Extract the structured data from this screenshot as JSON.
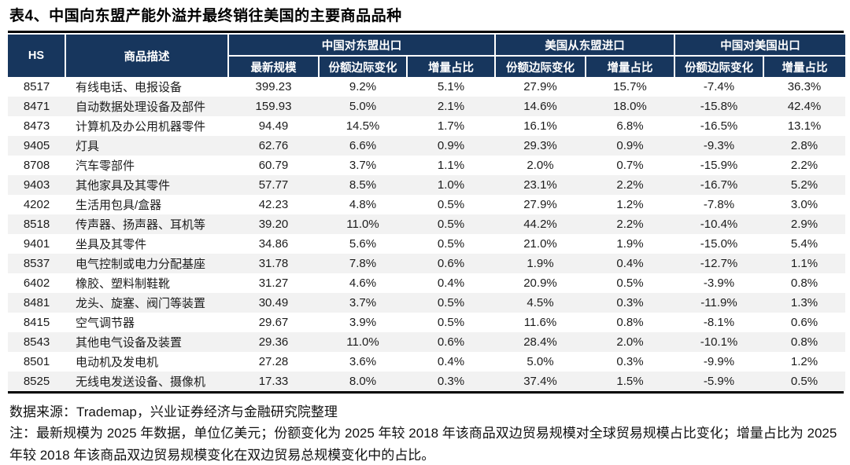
{
  "title": "表4、中国向东盟产能外溢并最终销往美国的主要商品品种",
  "colors": {
    "header_bg": "#17365D",
    "row_stripe": "#F2F2F2",
    "rule": "#000000"
  },
  "table": {
    "headers": {
      "hs": "HS",
      "desc": "商品描述"
    },
    "groups": [
      {
        "label": "中国对东盟出口",
        "cols": [
          "最新规模",
          "份额边际变化",
          "增量占比"
        ]
      },
      {
        "label": "美国从东盟进口",
        "cols": [
          "份额边际变化",
          "增量占比"
        ]
      },
      {
        "label": "中国对美国出口",
        "cols": [
          "份额边际变化",
          "增量占比"
        ]
      }
    ],
    "rows": [
      [
        "8517",
        "有线电话、电报设备",
        "399.23",
        "9.2%",
        "5.1%",
        "27.9%",
        "15.7%",
        "-7.4%",
        "36.3%"
      ],
      [
        "8471",
        "自动数据处理设备及部件",
        "159.93",
        "5.0%",
        "2.1%",
        "14.6%",
        "18.0%",
        "-15.8%",
        "42.4%"
      ],
      [
        "8473",
        "计算机及办公用机器零件",
        "94.49",
        "14.5%",
        "1.7%",
        "16.1%",
        "6.8%",
        "-16.5%",
        "13.1%"
      ],
      [
        "9405",
        "灯具",
        "62.76",
        "6.6%",
        "0.9%",
        "29.3%",
        "0.9%",
        "-9.3%",
        "2.8%"
      ],
      [
        "8708",
        "汽车零部件",
        "60.79",
        "3.7%",
        "1.1%",
        "2.0%",
        "0.7%",
        "-15.9%",
        "2.2%"
      ],
      [
        "9403",
        "其他家具及其零件",
        "57.77",
        "8.5%",
        "1.0%",
        "23.1%",
        "2.2%",
        "-16.7%",
        "5.2%"
      ],
      [
        "4202",
        "生活用包具/盒器",
        "42.23",
        "4.8%",
        "0.5%",
        "27.9%",
        "1.2%",
        "-7.8%",
        "3.0%"
      ],
      [
        "8518",
        "传声器、扬声器、耳机等",
        "39.20",
        "11.0%",
        "0.5%",
        "44.2%",
        "2.2%",
        "-10.4%",
        "2.9%"
      ],
      [
        "9401",
        "坐具及其零件",
        "34.86",
        "5.6%",
        "0.5%",
        "21.0%",
        "1.9%",
        "-15.0%",
        "5.4%"
      ],
      [
        "8537",
        "电气控制或电力分配基座",
        "31.78",
        "7.8%",
        "0.6%",
        "1.9%",
        "0.4%",
        "-12.7%",
        "1.1%"
      ],
      [
        "6402",
        "橡胶、塑料制鞋靴",
        "31.27",
        "4.6%",
        "0.4%",
        "20.9%",
        "0.5%",
        "-3.9%",
        "0.8%"
      ],
      [
        "8481",
        "龙头、旋塞、阀门等装置",
        "30.49",
        "3.7%",
        "0.5%",
        "4.5%",
        "0.3%",
        "-11.9%",
        "1.3%"
      ],
      [
        "8415",
        "空气调节器",
        "29.67",
        "3.9%",
        "0.5%",
        "11.6%",
        "0.8%",
        "-8.1%",
        "0.6%"
      ],
      [
        "8543",
        "其他电气设备及装置",
        "29.36",
        "11.0%",
        "0.6%",
        "28.4%",
        "2.0%",
        "-10.1%",
        "0.8%"
      ],
      [
        "8501",
        "电动机及发电机",
        "27.28",
        "3.6%",
        "0.4%",
        "5.0%",
        "0.3%",
        "-9.9%",
        "1.2%"
      ],
      [
        "8525",
        "无线电发送设备、摄像机",
        "17.33",
        "8.0%",
        "0.3%",
        "37.4%",
        "1.5%",
        "-5.9%",
        "0.5%"
      ]
    ]
  },
  "footer": {
    "source": "数据来源：Trademap，兴业证券经济与金融研究院整理",
    "note": "注：最新规模为 2025 年数据，单位亿美元；份额变化为 2025 年较 2018 年该商品双边贸易规模对全球贸易规模占比变化；增量占比为 2025 年较 2018 年该商品双边贸易规模变化在双边贸易总规模变化中的占比。"
  }
}
